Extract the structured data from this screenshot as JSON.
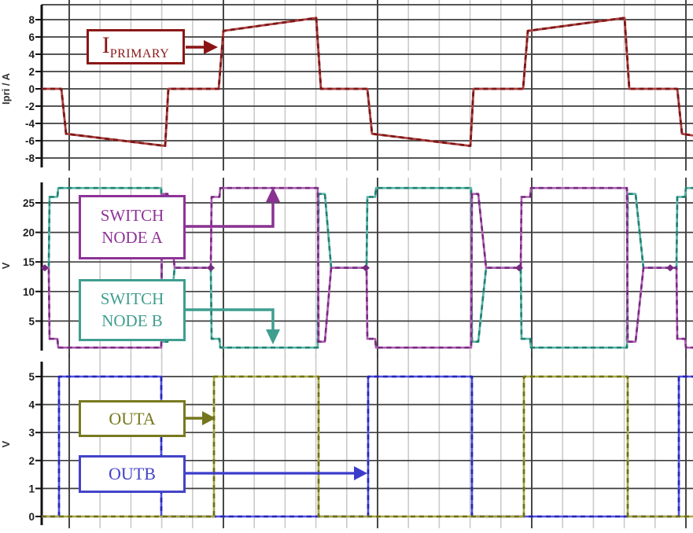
{
  "annotations": {
    "iprimary": {
      "main": "I",
      "sub": "PRIMARY"
    },
    "switch_node_a": {
      "line1": "SWITCH",
      "line2": "NODE A"
    },
    "switch_node_b": {
      "line1": "SWITCH",
      "line2": "NODE B"
    },
    "outa": {
      "label": "OUTA"
    },
    "outb": {
      "label": "OUTB"
    }
  },
  "colors": {
    "iprimary_accent": "#8b1717",
    "switch_node_a_accent": "#8e3399",
    "switch_node_b_accent": "#3f9e8f",
    "outa_accent": "#79791f",
    "outb_accent": "#4343c8",
    "grid_major": "#3e3e3e",
    "grid_minor": "#cacaca",
    "axis": "#111111"
  },
  "chart_data": [
    {
      "type": "line",
      "panel": "primary-current",
      "ylabel": "Ipri / A",
      "ylim": [
        -9,
        9.5
      ],
      "yticks": [
        8,
        6,
        4,
        2,
        0,
        -2,
        -4,
        -6,
        -8
      ],
      "x_axis_note": "time axis unlabeled; x given as fraction of visible window, 5 major divisions",
      "grid": "on",
      "series": [
        {
          "name": "I_PRIMARY",
          "color": "#8b1a1a",
          "points": [
            [
              0,
              0
            ],
            [
              0.0302,
              0
            ],
            [
              0.0374,
              -5.2
            ],
            [
              0.1896,
              -6.6
            ],
            [
              0.1944,
              0
            ],
            [
              0.2717,
              0
            ],
            [
              0.279,
              6.7
            ],
            [
              0.4215,
              8.2
            ],
            [
              0.4287,
              0
            ],
            [
              0.5,
              0
            ],
            [
              0.5072,
              -5.2
            ],
            [
              0.6582,
              -6.6
            ],
            [
              0.663,
              0
            ],
            [
              0.7391,
              0
            ],
            [
              0.7464,
              6.7
            ],
            [
              0.8949,
              8.2
            ],
            [
              0.9022,
              0
            ],
            [
              0.9758,
              0
            ],
            [
              0.9831,
              -5.2
            ],
            [
              1,
              -5.4
            ]
          ]
        }
      ]
    },
    {
      "type": "line",
      "panel": "switch-nodes",
      "ylabel": "V",
      "ylim": [
        -0.8,
        28.6
      ],
      "yticks": [
        25,
        20,
        15,
        10,
        5
      ],
      "grid": "on",
      "series": [
        {
          "name": "SWITCH NODE B",
          "color": "#3f9e8f",
          "points": [
            [
              0,
              14
            ],
            [
              0.0109,
              14
            ],
            [
              0.0121,
              26
            ],
            [
              0.0242,
              26
            ],
            [
              0.0254,
              27.5
            ],
            [
              0.1836,
              27.5
            ],
            [
              0.1848,
              1.5
            ],
            [
              0.1932,
              1.5
            ],
            [
              0.2041,
              14
            ],
            [
              0.2597,
              14
            ],
            [
              0.2609,
              2
            ],
            [
              0.2729,
              2
            ],
            [
              0.2741,
              0.5
            ],
            [
              0.4239,
              0.5
            ],
            [
              0.4251,
              26.5
            ],
            [
              0.4348,
              26.5
            ],
            [
              0.4444,
              14
            ],
            [
              0.4988,
              14
            ],
            [
              0.5,
              26
            ],
            [
              0.5121,
              26
            ],
            [
              0.5133,
              27.5
            ],
            [
              0.6594,
              27.5
            ],
            [
              0.6606,
              1.5
            ],
            [
              0.6703,
              1.5
            ],
            [
              0.6824,
              14
            ],
            [
              0.7355,
              14
            ],
            [
              0.7367,
              2
            ],
            [
              0.75,
              2
            ],
            [
              0.7512,
              0.5
            ],
            [
              0.8986,
              0.5
            ],
            [
              0.8998,
              26.5
            ],
            [
              0.9118,
              26.5
            ],
            [
              0.9239,
              14
            ],
            [
              0.9746,
              14
            ],
            [
              0.9758,
              26
            ],
            [
              0.9879,
              26
            ],
            [
              0.9891,
              27.5
            ],
            [
              1,
              27.5
            ]
          ]
        },
        {
          "name": "SWITCH NODE A",
          "color": "#8e3399",
          "markers_x": [
            0.0048,
            0.2597,
            0.4976,
            0.7331,
            0.965
          ],
          "points": [
            [
              0,
              14
            ],
            [
              0.0109,
              14
            ],
            [
              0.0121,
              2
            ],
            [
              0.0242,
              2
            ],
            [
              0.0254,
              0.5
            ],
            [
              0.1836,
              0.5
            ],
            [
              0.1848,
              26.5
            ],
            [
              0.1932,
              26.5
            ],
            [
              0.2041,
              14
            ],
            [
              0.2597,
              14
            ],
            [
              0.2609,
              26
            ],
            [
              0.2729,
              26
            ],
            [
              0.2741,
              27.5
            ],
            [
              0.4239,
              27.5
            ],
            [
              0.4251,
              1.5
            ],
            [
              0.4348,
              1.5
            ],
            [
              0.4444,
              14
            ],
            [
              0.4988,
              14
            ],
            [
              0.5,
              2
            ],
            [
              0.5121,
              2
            ],
            [
              0.5133,
              0.5
            ],
            [
              0.6594,
              0.5
            ],
            [
              0.6606,
              26.5
            ],
            [
              0.6703,
              26.5
            ],
            [
              0.6824,
              14
            ],
            [
              0.7355,
              14
            ],
            [
              0.7367,
              26
            ],
            [
              0.75,
              26
            ],
            [
              0.7512,
              27.5
            ],
            [
              0.8986,
              27.5
            ],
            [
              0.8998,
              1.5
            ],
            [
              0.9118,
              1.5
            ],
            [
              0.9239,
              14
            ],
            [
              0.9746,
              14
            ],
            [
              0.9758,
              2
            ],
            [
              0.9879,
              2
            ],
            [
              0.9891,
              0.5
            ],
            [
              1,
              0.5
            ]
          ]
        }
      ]
    },
    {
      "type": "line",
      "panel": "outputs",
      "ylabel": "V",
      "ylim": [
        -0.35,
        5.6
      ],
      "yticks": [
        5,
        4,
        3,
        2,
        1,
        0
      ],
      "grid": "on",
      "series": [
        {
          "name": "OUTB",
          "color": "#4343c8",
          "points": [
            [
              0,
              0
            ],
            [
              0.0266,
              0
            ],
            [
              0.0266,
              5
            ],
            [
              0.1836,
              5
            ],
            [
              0.1836,
              0
            ],
            [
              0.5012,
              0
            ],
            [
              0.5012,
              5
            ],
            [
              0.6606,
              5
            ],
            [
              0.6606,
              0
            ],
            [
              0.9783,
              0
            ],
            [
              0.9783,
              5
            ],
            [
              1,
              5
            ]
          ]
        },
        {
          "name": "OUTA",
          "color": "#79791f",
          "points": [
            [
              0,
              0
            ],
            [
              0.2645,
              0
            ],
            [
              0.2645,
              5
            ],
            [
              0.4251,
              5
            ],
            [
              0.4251,
              0
            ],
            [
              0.7403,
              0
            ],
            [
              0.7403,
              5
            ],
            [
              0.8998,
              5
            ],
            [
              0.8998,
              0
            ],
            [
              1,
              0
            ]
          ]
        }
      ]
    }
  ]
}
